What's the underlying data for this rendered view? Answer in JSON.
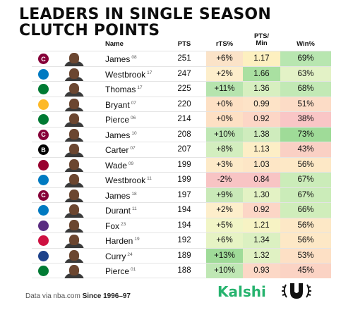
{
  "title_line1": "LEADERS IN SINGLE SEASON",
  "title_line2": "CLUTCH POINTS",
  "headers": {
    "name": "Name",
    "pts": "PTS",
    "ts": "rTS%",
    "pm": "PTS/\nMin",
    "win": "Win%"
  },
  "rows": [
    {
      "team": "Cavaliers",
      "team_icon": "cavs-c-logo",
      "logo_color": "#860038",
      "logo_text": "C",
      "name": "James",
      "season": "08",
      "pts": "251",
      "ts": "+6%",
      "pm": "1.17",
      "win": "69%",
      "ts_color": "#fbe3c8",
      "pm_color": "#fdf0c0",
      "win_color": "#b8e6b0"
    },
    {
      "team": "Thunder",
      "team_icon": "okc-logo",
      "logo_color": "#007ac1",
      "logo_text": "",
      "name": "Westbrook",
      "season": "17",
      "pts": "247",
      "ts": "+2%",
      "pm": "1.66",
      "win": "63%",
      "ts_color": "#fdeecb",
      "pm_color": "#a9e0a1",
      "win_color": "#e3f2c6"
    },
    {
      "team": "Celtics",
      "team_icon": "celtics-logo",
      "logo_color": "#007a33",
      "logo_text": "",
      "name": "Thomas",
      "season": "17",
      "pts": "225",
      "ts": "+11%",
      "pm": "1.36",
      "win": "68%",
      "ts_color": "#b6e4ae",
      "pm_color": "#d7efc0",
      "win_color": "#c2e9b5"
    },
    {
      "team": "Lakers",
      "team_icon": "lakers-logo",
      "logo_color": "#fdb927",
      "logo_text": "",
      "name": "Bryant",
      "season": "07",
      "pts": "220",
      "ts": "+0%",
      "pm": "0.99",
      "win": "51%",
      "ts_color": "#fde0c4",
      "pm_color": "#fde3c7",
      "win_color": "#fcdcc6"
    },
    {
      "team": "Celtics",
      "team_icon": "celtics-logo",
      "logo_color": "#007a33",
      "logo_text": "",
      "name": "Pierce",
      "season": "06",
      "pts": "214",
      "ts": "+0%",
      "pm": "0.92",
      "win": "38%",
      "ts_color": "#fde0c4",
      "pm_color": "#fcd6c6",
      "win_color": "#f9c6c6"
    },
    {
      "team": "Cavaliers",
      "team_icon": "cavs-c-logo",
      "logo_color": "#860038",
      "logo_text": "C",
      "name": "James",
      "season": "10",
      "pts": "208",
      "ts": "+10%",
      "pm": "1.38",
      "win": "73%",
      "ts_color": "#bfe7b4",
      "pm_color": "#cfecbd",
      "win_color": "#9fdb98"
    },
    {
      "team": "Nets",
      "team_icon": "nets-logo",
      "logo_color": "#000000",
      "logo_text": "B",
      "name": "Carter",
      "season": "07",
      "pts": "207",
      "ts": "+8%",
      "pm": "1.13",
      "win": "43%",
      "ts_color": "#d3eebf",
      "pm_color": "#fdeec6",
      "win_color": "#fad0c4"
    },
    {
      "team": "Heat",
      "team_icon": "heat-logo",
      "logo_color": "#98002e",
      "logo_text": "",
      "name": "Wade",
      "season": "09",
      "pts": "199",
      "ts": "+3%",
      "pm": "1.03",
      "win": "56%",
      "ts_color": "#fdeac8",
      "pm_color": "#fde6c6",
      "win_color": "#fde8c6"
    },
    {
      "team": "Thunder",
      "team_icon": "okc-logo",
      "logo_color": "#007ac1",
      "logo_text": "",
      "name": "Westbrook",
      "season": "11",
      "pts": "199",
      "ts": "-2%",
      "pm": "0.84",
      "win": "67%",
      "ts_color": "#f8c4c4",
      "pm_color": "#f8c4c4",
      "win_color": "#cbecb9"
    },
    {
      "team": "Cavaliers",
      "team_icon": "cavs-c-logo",
      "logo_color": "#860038",
      "logo_text": "C",
      "name": "James",
      "season": "18",
      "pts": "197",
      "ts": "+9%",
      "pm": "1.30",
      "win": "67%",
      "ts_color": "#c9e9b8",
      "pm_color": "#e3f2c4",
      "win_color": "#cbecb9"
    },
    {
      "team": "Thunder",
      "team_icon": "okc-logo",
      "logo_color": "#007ac1",
      "logo_text": "",
      "name": "Durant",
      "season": "11",
      "pts": "194",
      "ts": "+2%",
      "pm": "0.92",
      "win": "66%",
      "ts_color": "#fdeecb",
      "pm_color": "#fcd6c6",
      "win_color": "#d0edbb"
    },
    {
      "team": "Kings",
      "team_icon": "kings-logo",
      "logo_color": "#5a2d81",
      "logo_text": "",
      "name": "Fox",
      "season": "23",
      "pts": "194",
      "ts": "+5%",
      "pm": "1.21",
      "win": "56%",
      "ts_color": "#f1f5c6",
      "pm_color": "#f7f3c4",
      "win_color": "#fde8c6"
    },
    {
      "team": "Rockets",
      "team_icon": "rockets-logo",
      "logo_color": "#ce1141",
      "logo_text": "",
      "name": "Harden",
      "season": "19",
      "pts": "192",
      "ts": "+6%",
      "pm": "1.34",
      "win": "56%",
      "ts_color": "#e6f3c4",
      "pm_color": "#dbf0c1",
      "win_color": "#fde8c6"
    },
    {
      "team": "Warriors",
      "team_icon": "warriors-logo",
      "logo_color": "#1d428a",
      "logo_text": "",
      "name": "Curry",
      "season": "24",
      "pts": "189",
      "ts": "+13%",
      "pm": "1.32",
      "win": "53%",
      "ts_color": "#9fdb98",
      "pm_color": "#e0f1c3",
      "win_color": "#fde0c5"
    },
    {
      "team": "Celtics",
      "team_icon": "celtics-logo",
      "logo_color": "#007a33",
      "logo_text": "",
      "name": "Pierce",
      "season": "01",
      "pts": "188",
      "ts": "+10%",
      "pm": "0.93",
      "win": "45%",
      "ts_color": "#bfe7b4",
      "pm_color": "#fcd8c6",
      "win_color": "#fbd3c4"
    }
  ],
  "footer_source": "Data via nba.com",
  "footer_since": "Since 1996–97",
  "brand": "Kalshi",
  "crest_icon": "laurel-u-crest-icon"
}
